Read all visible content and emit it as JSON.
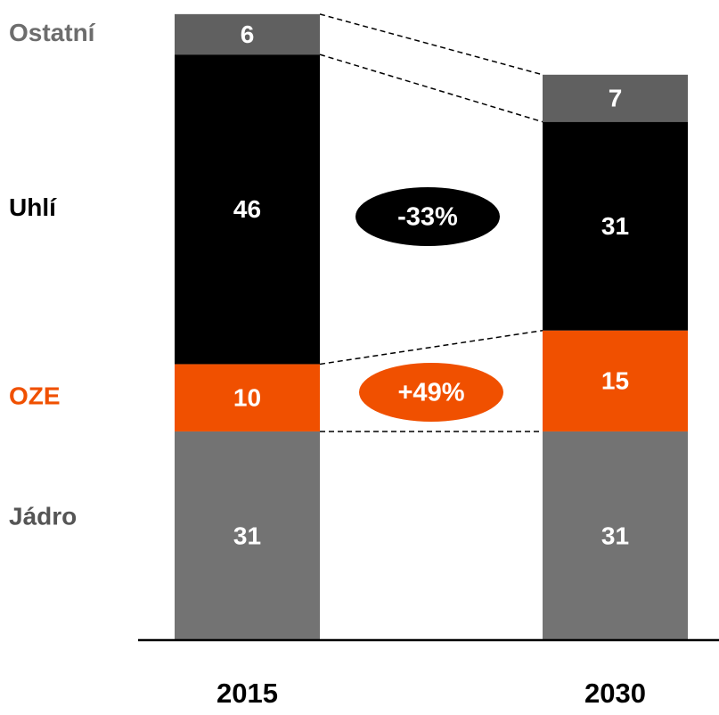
{
  "chart_data": {
    "type": "stacked_bar",
    "categories": [
      "2015",
      "2030"
    ],
    "series": [
      {
        "name": "Jádro",
        "color": "#737373",
        "values": [
          31,
          31
        ]
      },
      {
        "name": "OZE",
        "color": "#f05000",
        "values": [
          10,
          15
        ]
      },
      {
        "name": "Uhlí",
        "color": "#000000",
        "values": [
          46,
          31
        ]
      },
      {
        "name": "Ostatní",
        "color": "#606060",
        "values": [
          6,
          7
        ]
      }
    ],
    "annotations": [
      {
        "text": "-33%",
        "color": "#000000"
      },
      {
        "text": "+49%",
        "color": "#f05000"
      }
    ]
  }
}
